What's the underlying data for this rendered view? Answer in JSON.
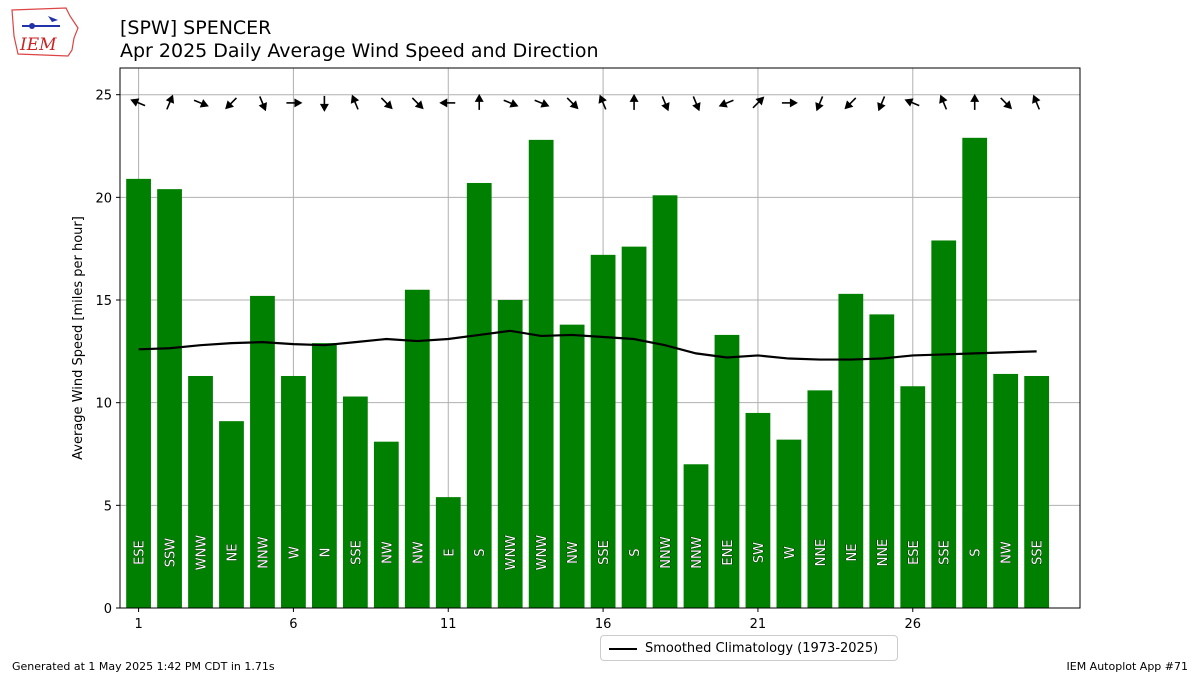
{
  "header": {
    "logo_text": "IEM",
    "title_line1": "[SPW] SPENCER",
    "title_line2": "Apr 2025 Daily Average Wind Speed and Direction"
  },
  "footer": {
    "generated": "Generated at 1 May 2025 1:42 PM CDT in 1.71s",
    "app": "IEM Autoplot App #71"
  },
  "colors": {
    "bar": "#008000",
    "climo": "#000000",
    "grid": "#b0b0b0"
  },
  "chart_data": {
    "type": "bar",
    "title": "Apr 2025 Daily Average Wind Speed and Direction",
    "xlabel": "",
    "ylabel": "Average Wind Speed [miles per hour]",
    "ylim": [
      0,
      26.3
    ],
    "xlim": [
      0.4,
      31.4
    ],
    "yticks": [
      0,
      5,
      10,
      15,
      20,
      25
    ],
    "xticks": [
      1,
      6,
      11,
      16,
      21,
      26
    ],
    "grid": true,
    "legend_position": "bottom-center",
    "x": [
      1,
      2,
      3,
      4,
      5,
      6,
      7,
      8,
      9,
      10,
      11,
      12,
      13,
      14,
      15,
      16,
      17,
      18,
      19,
      20,
      21,
      22,
      23,
      24,
      25,
      26,
      27,
      28,
      29,
      30
    ],
    "values": [
      20.9,
      20.4,
      11.3,
      9.1,
      15.2,
      11.3,
      12.9,
      10.3,
      8.1,
      15.5,
      5.4,
      20.7,
      15.0,
      22.8,
      13.8,
      17.2,
      17.6,
      20.1,
      7.0,
      13.3,
      9.5,
      8.2,
      10.6,
      15.3,
      14.3,
      10.8,
      17.9,
      22.9,
      11.4,
      11.3
    ],
    "directions": [
      "ESE",
      "SSW",
      "WNW",
      "NE",
      "NNW",
      "W",
      "N",
      "SSE",
      "NW",
      "NW",
      "E",
      "S",
      "WNW",
      "WNW",
      "NW",
      "SSE",
      "S",
      "NNW",
      "NNW",
      "ENE",
      "SW",
      "W",
      "NNE",
      "NE",
      "NNE",
      "ESE",
      "SSE",
      "S",
      "NW",
      "SSE"
    ],
    "climatology": {
      "name": "Smoothed Climatology (1973-2025)",
      "values": [
        12.6,
        12.65,
        12.8,
        12.9,
        12.95,
        12.85,
        12.8,
        12.95,
        13.1,
        13.0,
        13.1,
        13.3,
        13.5,
        13.25,
        13.3,
        13.2,
        13.1,
        12.8,
        12.4,
        12.2,
        12.3,
        12.15,
        12.1,
        12.1,
        12.15,
        12.3,
        12.35,
        12.4,
        12.45,
        12.5
      ]
    }
  }
}
